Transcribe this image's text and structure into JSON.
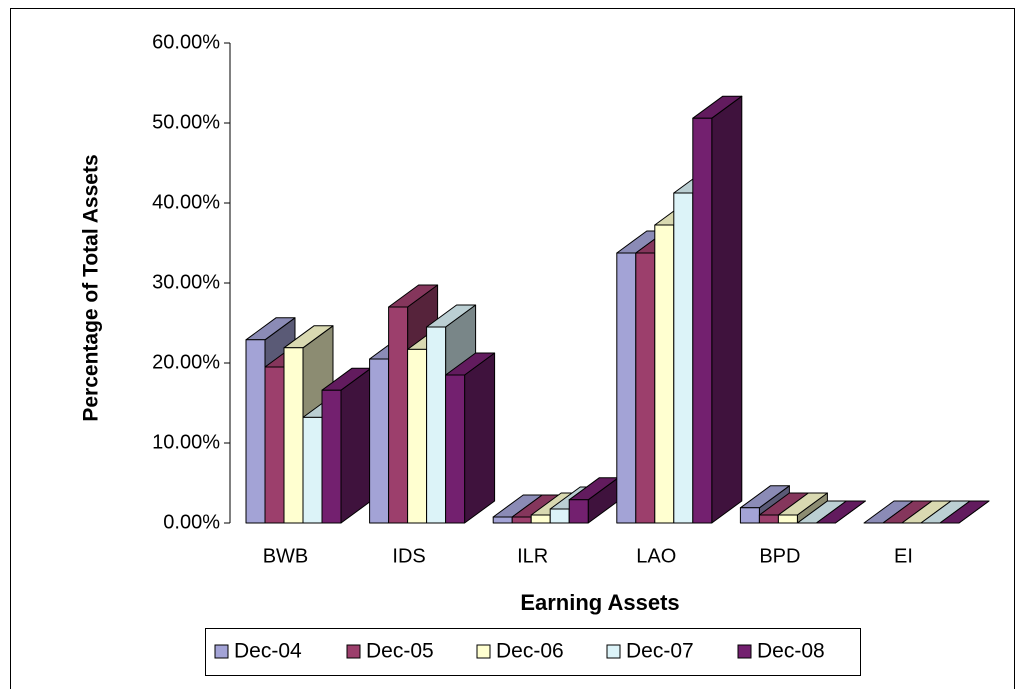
{
  "chart_data": {
    "type": "bar3d",
    "x_label": "Earning Assets",
    "y_label": "Percentage of Total Assets",
    "categories": [
      "BWB",
      "IDS",
      "ILR",
      "LAO",
      "BPD",
      "EI"
    ],
    "series": [
      {
        "name": "Dec-04",
        "color": "#a3a3d6",
        "values": [
          22.9,
          20.5,
          0.75,
          33.75,
          1.9,
          0
        ]
      },
      {
        "name": "Dec-05",
        "color": "#9c3f6c",
        "values": [
          19.5,
          27.0,
          0.75,
          33.75,
          1.0,
          0
        ]
      },
      {
        "name": "Dec-06",
        "color": "#ffffd0",
        "values": [
          21.9,
          21.7,
          1.0,
          37.25,
          1.0,
          0
        ]
      },
      {
        "name": "Dec-07",
        "color": "#dcf3f8",
        "values": [
          13.2,
          24.5,
          1.75,
          41.25,
          0,
          0
        ]
      },
      {
        "name": "Dec-08",
        "color": "#73206f",
        "values": [
          16.6,
          18.5,
          2.9,
          50.6,
          0,
          0
        ]
      }
    ],
    "ylim": [
      0,
      60
    ],
    "yticks": [
      {
        "value": 0,
        "label": "0.00%"
      },
      {
        "value": 10,
        "label": "10.00%"
      },
      {
        "value": 20,
        "label": "20.00%"
      },
      {
        "value": 30,
        "label": "30.00%"
      },
      {
        "value": 40,
        "label": "40.00%"
      },
      {
        "value": 50,
        "label": "50.00%"
      },
      {
        "value": 60,
        "label": "60.00%"
      }
    ],
    "legend": "bottom"
  }
}
